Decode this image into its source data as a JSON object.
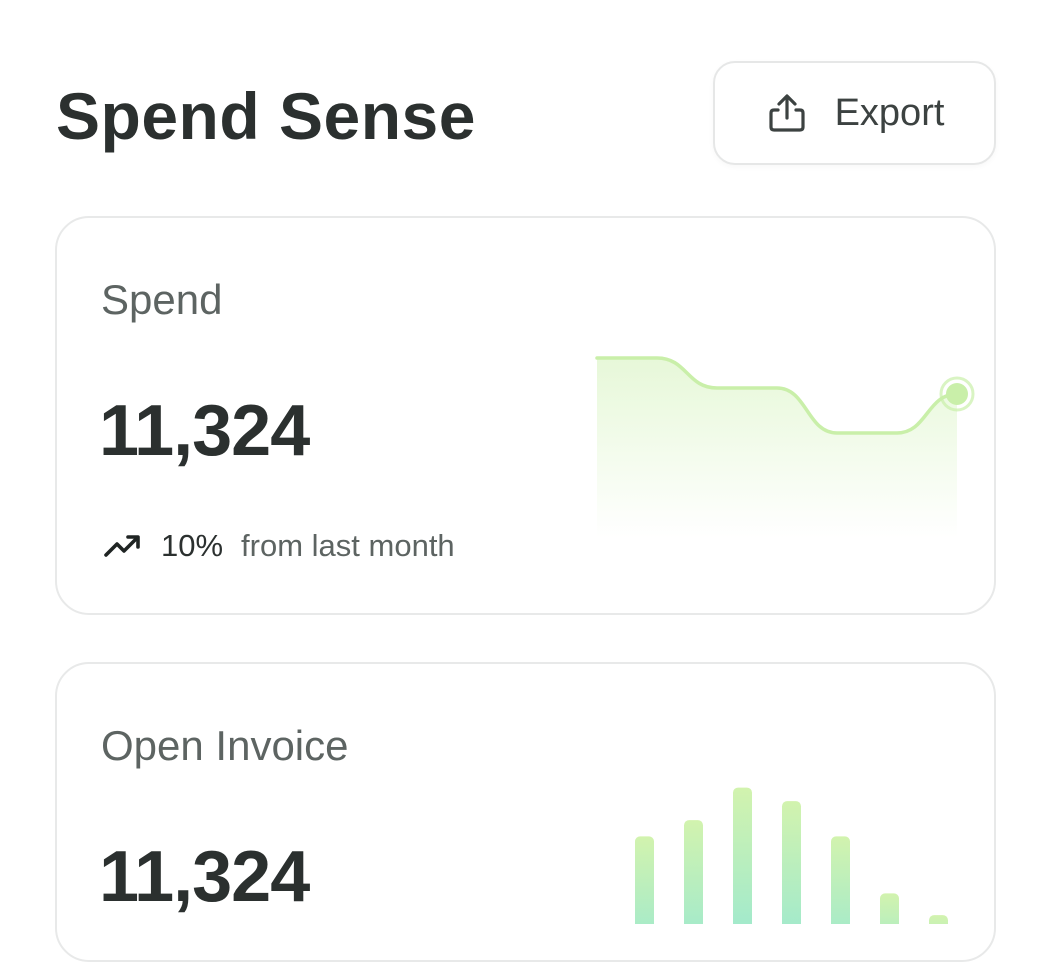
{
  "header": {
    "title": "Spend Sense",
    "export_label": "Export"
  },
  "spend_card": {
    "title": "Spend",
    "value": "11,324",
    "trend_percent": "10%",
    "trend_suffix": "from last month",
    "accent": "#c9efa9"
  },
  "invoice_card": {
    "title": "Open Invoice",
    "value": "11,324",
    "accent_top": "#d2f3ae",
    "accent_bottom": "#8fe6d8"
  },
  "chart_data": [
    {
      "type": "line",
      "values": [
        4,
        4,
        3,
        3,
        1.5,
        1.5,
        2.8
      ],
      "ylim": [
        0,
        5
      ],
      "grid": false
    },
    {
      "type": "bar",
      "values": [
        4.7,
        5.3,
        6.5,
        6.0,
        4.7,
        2.6,
        1.8
      ],
      "ylim": [
        0,
        7
      ],
      "grid": false
    }
  ]
}
